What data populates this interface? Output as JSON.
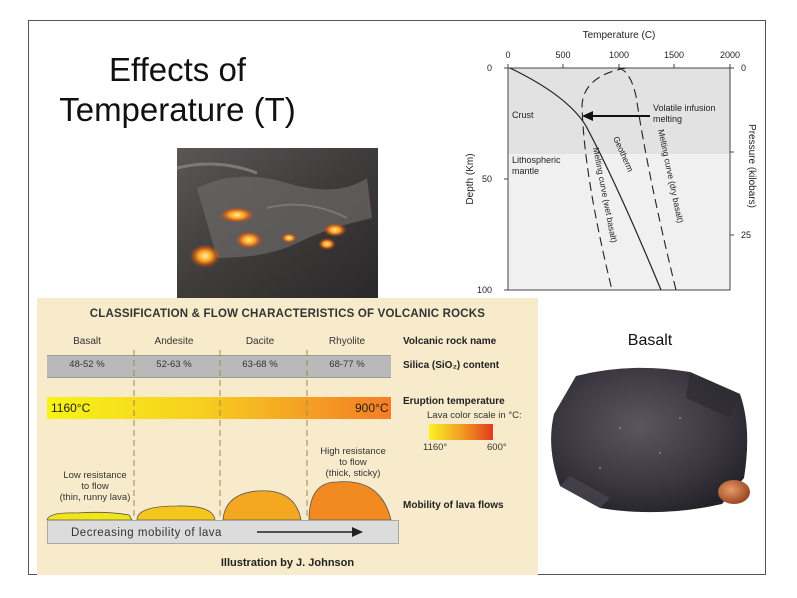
{
  "slide": {
    "title_line1": "Effects of",
    "title_line2": "Temperature (T)"
  },
  "geotherm_diagram": {
    "x_axis_title": "Temperature (C)",
    "x_ticks": [
      "0",
      "500",
      "1000",
      "1500",
      "2000"
    ],
    "y_axis_title": "Depth (Km)",
    "y_ticks": [
      "0",
      "50",
      "100"
    ],
    "right_axis_title": "Pressure (kilobars)",
    "right_ticks": [
      "0",
      "25"
    ],
    "crust_label": "Crust",
    "mantle_label_line1": "Lithospheric",
    "mantle_label_line2": "mantle",
    "arrow_label_line1": "Volatile infusion",
    "arrow_label_line2": "melting",
    "curve_wet": "Melting curve (wet basalt)",
    "curve_geotherm": "Geotherm",
    "curve_dry": "Melting curve (dry basalt)"
  },
  "volcanic_chart": {
    "title": "CLASSIFICATION & FLOW CHARACTERISTICS OF VOLCANIC ROCKS",
    "rocks": [
      "Basalt",
      "Andesite",
      "Dacite",
      "Rhyolite"
    ],
    "rock_name_label": "Volcanic rock name",
    "silica": [
      "48-52 %",
      "52-63 %",
      "63-68 %",
      "68-77 %"
    ],
    "silica_label": "Silica (SiO₂) content",
    "temp_left": "1160°C",
    "temp_right": "900°C",
    "eruption_label": "Eruption temperature",
    "scale_caption": "Lava color scale in °C:",
    "scale_low": "1160°",
    "scale_high": "600°",
    "low_res_line1": "Low resistance",
    "low_res_line2": "to flow",
    "low_res_line3": "(thin, runny lava)",
    "high_res_line1": "High resistance",
    "high_res_line2": "to flow",
    "high_res_line3": "(thick, sticky)",
    "mobility_label": "Mobility of lava flows",
    "arrow_text": "Decreasing mobility of lava",
    "credit": "Illustration by J. Johnson"
  },
  "basalt": {
    "label": "Basalt"
  }
}
